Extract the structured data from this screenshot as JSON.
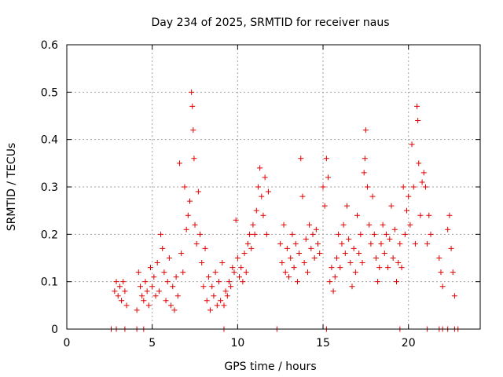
{
  "chart_data": {
    "type": "scatter",
    "title": "Day 234 of 2025, SRMTID for receiver naus",
    "xlabel": "GPS time / hours",
    "ylabel": "SRMTID / TECUs",
    "xlim": [
      0,
      24.2
    ],
    "ylim": [
      0,
      0.6
    ],
    "xticks": [
      0,
      5,
      10,
      15,
      20
    ],
    "xtick_labels": [
      "0",
      "5",
      "10",
      "15",
      "20"
    ],
    "yticks": [
      0,
      0.1,
      0.2,
      0.3,
      0.4,
      0.5,
      0.6
    ],
    "ytick_labels": [
      "0",
      "0.1",
      "0.2",
      "0.3",
      "0.4",
      "0.5",
      "0.6"
    ],
    "grid": true,
    "marker": "+",
    "color": "#e00000",
    "series": [
      {
        "name": "SRMTID",
        "points": [
          [
            2.8,
            0.08
          ],
          [
            2.9,
            0.1
          ],
          [
            3.0,
            0.07
          ],
          [
            3.1,
            0.09
          ],
          [
            3.2,
            0.06
          ],
          [
            3.3,
            0.1
          ],
          [
            3.4,
            0.08
          ],
          [
            3.5,
            0.05
          ],
          [
            4.1,
            0.04
          ],
          [
            4.2,
            0.12
          ],
          [
            4.3,
            0.09
          ],
          [
            4.4,
            0.07
          ],
          [
            4.5,
            0.06
          ],
          [
            4.6,
            0.1
          ],
          [
            4.7,
            0.08
          ],
          [
            4.8,
            0.05
          ],
          [
            4.9,
            0.13
          ],
          [
            5.0,
            0.09
          ],
          [
            5.1,
            0.11
          ],
          [
            5.2,
            0.07
          ],
          [
            5.3,
            0.14
          ],
          [
            5.4,
            0.08
          ],
          [
            5.5,
            0.2
          ],
          [
            5.6,
            0.17
          ],
          [
            5.7,
            0.12
          ],
          [
            5.8,
            0.06
          ],
          [
            5.9,
            0.1
          ],
          [
            6.0,
            0.15
          ],
          [
            6.1,
            0.05
          ],
          [
            6.2,
            0.09
          ],
          [
            6.3,
            0.04
          ],
          [
            6.4,
            0.11
          ],
          [
            6.5,
            0.07
          ],
          [
            6.6,
            0.35
          ],
          [
            6.7,
            0.16
          ],
          [
            6.8,
            0.12
          ],
          [
            6.9,
            0.3
          ],
          [
            7.0,
            0.21
          ],
          [
            7.1,
            0.24
          ],
          [
            7.2,
            0.27
          ],
          [
            7.3,
            0.5
          ],
          [
            7.35,
            0.47
          ],
          [
            7.4,
            0.42
          ],
          [
            7.45,
            0.36
          ],
          [
            7.5,
            0.22
          ],
          [
            7.6,
            0.18
          ],
          [
            7.7,
            0.29
          ],
          [
            7.8,
            0.2
          ],
          [
            7.9,
            0.14
          ],
          [
            8.0,
            0.09
          ],
          [
            8.1,
            0.17
          ],
          [
            8.2,
            0.06
          ],
          [
            8.3,
            0.11
          ],
          [
            8.4,
            0.04
          ],
          [
            8.5,
            0.09
          ],
          [
            8.6,
            0.07
          ],
          [
            8.7,
            0.12
          ],
          [
            8.8,
            0.05
          ],
          [
            8.9,
            0.1
          ],
          [
            9.0,
            0.06
          ],
          [
            9.1,
            0.14
          ],
          [
            9.2,
            0.05
          ],
          [
            9.3,
            0.08
          ],
          [
            9.4,
            0.07
          ],
          [
            9.5,
            0.1
          ],
          [
            9.6,
            0.09
          ],
          [
            9.7,
            0.13
          ],
          [
            9.8,
            0.12
          ],
          [
            9.9,
            0.23
          ],
          [
            10.0,
            0.15
          ],
          [
            10.1,
            0.11
          ],
          [
            10.2,
            0.13
          ],
          [
            10.3,
            0.1
          ],
          [
            10.4,
            0.16
          ],
          [
            10.5,
            0.12
          ],
          [
            10.6,
            0.18
          ],
          [
            10.7,
            0.2
          ],
          [
            10.8,
            0.17
          ],
          [
            10.9,
            0.22
          ],
          [
            11.0,
            0.2
          ],
          [
            11.1,
            0.25
          ],
          [
            11.2,
            0.3
          ],
          [
            11.3,
            0.34
          ],
          [
            11.4,
            0.28
          ],
          [
            11.5,
            0.24
          ],
          [
            11.6,
            0.32
          ],
          [
            11.7,
            0.2
          ],
          [
            11.8,
            0.29
          ],
          [
            12.5,
            0.18
          ],
          [
            12.6,
            0.14
          ],
          [
            12.7,
            0.22
          ],
          [
            12.8,
            0.12
          ],
          [
            12.9,
            0.17
          ],
          [
            13.0,
            0.11
          ],
          [
            13.1,
            0.15
          ],
          [
            13.2,
            0.2
          ],
          [
            13.3,
            0.13
          ],
          [
            13.4,
            0.18
          ],
          [
            13.5,
            0.1
          ],
          [
            13.6,
            0.16
          ],
          [
            13.7,
            0.36
          ],
          [
            13.8,
            0.28
          ],
          [
            13.9,
            0.14
          ],
          [
            14.0,
            0.19
          ],
          [
            14.1,
            0.12
          ],
          [
            14.2,
            0.22
          ],
          [
            14.3,
            0.17
          ],
          [
            14.4,
            0.2
          ],
          [
            14.5,
            0.15
          ],
          [
            14.6,
            0.21
          ],
          [
            14.7,
            0.18
          ],
          [
            14.8,
            0.16
          ],
          [
            15.0,
            0.3
          ],
          [
            15.1,
            0.26
          ],
          [
            15.2,
            0.36
          ],
          [
            15.3,
            0.32
          ],
          [
            15.4,
            0.1
          ],
          [
            15.5,
            0.13
          ],
          [
            15.6,
            0.08
          ],
          [
            15.7,
            0.11
          ],
          [
            15.8,
            0.15
          ],
          [
            15.9,
            0.2
          ],
          [
            16.0,
            0.13
          ],
          [
            16.1,
            0.18
          ],
          [
            16.2,
            0.22
          ],
          [
            16.3,
            0.16
          ],
          [
            16.4,
            0.26
          ],
          [
            16.5,
            0.19
          ],
          [
            16.6,
            0.14
          ],
          [
            16.7,
            0.09
          ],
          [
            16.8,
            0.17
          ],
          [
            16.9,
            0.12
          ],
          [
            17.0,
            0.24
          ],
          [
            17.1,
            0.16
          ],
          [
            17.2,
            0.2
          ],
          [
            17.3,
            0.14
          ],
          [
            17.4,
            0.33
          ],
          [
            17.45,
            0.36
          ],
          [
            17.5,
            0.42
          ],
          [
            17.6,
            0.3
          ],
          [
            17.7,
            0.22
          ],
          [
            17.8,
            0.18
          ],
          [
            17.9,
            0.28
          ],
          [
            18.0,
            0.2
          ],
          [
            18.1,
            0.15
          ],
          [
            18.2,
            0.1
          ],
          [
            18.3,
            0.13
          ],
          [
            18.4,
            0.18
          ],
          [
            18.5,
            0.22
          ],
          [
            18.6,
            0.16
          ],
          [
            18.7,
            0.2
          ],
          [
            18.8,
            0.13
          ],
          [
            18.9,
            0.19
          ],
          [
            19.0,
            0.26
          ],
          [
            19.1,
            0.15
          ],
          [
            19.2,
            0.21
          ],
          [
            19.3,
            0.1
          ],
          [
            19.4,
            0.14
          ],
          [
            19.5,
            0.18
          ],
          [
            19.6,
            0.13
          ],
          [
            19.7,
            0.3
          ],
          [
            19.8,
            0.2
          ],
          [
            19.9,
            0.25
          ],
          [
            20.0,
            0.28
          ],
          [
            20.1,
            0.22
          ],
          [
            20.2,
            0.39
          ],
          [
            20.3,
            0.3
          ],
          [
            20.4,
            0.18
          ],
          [
            20.5,
            0.47
          ],
          [
            20.55,
            0.44
          ],
          [
            20.6,
            0.35
          ],
          [
            20.7,
            0.24
          ],
          [
            20.8,
            0.31
          ],
          [
            20.9,
            0.33
          ],
          [
            21.0,
            0.3
          ],
          [
            21.1,
            0.18
          ],
          [
            21.2,
            0.24
          ],
          [
            21.3,
            0.2
          ],
          [
            21.8,
            0.15
          ],
          [
            21.9,
            0.12
          ],
          [
            22.0,
            0.09
          ],
          [
            22.3,
            0.21
          ],
          [
            22.4,
            0.24
          ],
          [
            22.5,
            0.17
          ],
          [
            22.6,
            0.12
          ],
          [
            22.7,
            0.07
          ],
          [
            2.6,
            0
          ],
          [
            2.9,
            0
          ],
          [
            3.4,
            0
          ],
          [
            4.1,
            0
          ],
          [
            4.5,
            0
          ],
          [
            9.2,
            0
          ],
          [
            12.3,
            0
          ],
          [
            15.2,
            0
          ],
          [
            19.5,
            0
          ],
          [
            21.1,
            0
          ],
          [
            21.8,
            0
          ],
          [
            22.0,
            0
          ],
          [
            22.3,
            0
          ],
          [
            22.7,
            0
          ],
          [
            22.9,
            0
          ]
        ]
      }
    ]
  }
}
